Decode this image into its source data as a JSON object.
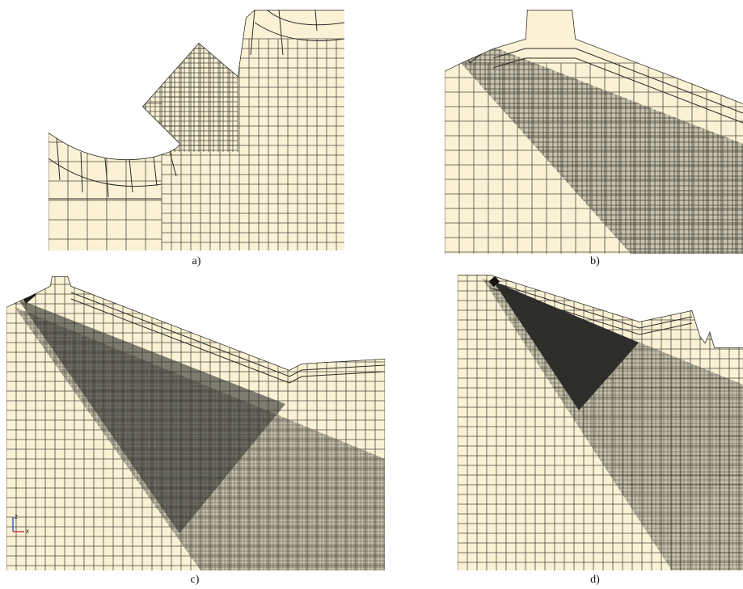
{
  "figure": {
    "panels": [
      {
        "id": "a",
        "caption": "a)"
      },
      {
        "id": "b",
        "caption": "b)"
      },
      {
        "id": "c",
        "caption": "c)"
      },
      {
        "id": "d",
        "caption": "d)"
      }
    ],
    "axis_triad": {
      "x_label": "x",
      "z_label": "z"
    }
  },
  "colors": {
    "mesh_background": "#fbf2d5",
    "mesh_line": "#2c2b26",
    "refinement_medium": "#9d9b8a",
    "refinement_dense": "#4e4d48",
    "refinement_darkest": "#2f2f2e",
    "axis_z": "#4060d0",
    "axis_x": "#c04040"
  }
}
